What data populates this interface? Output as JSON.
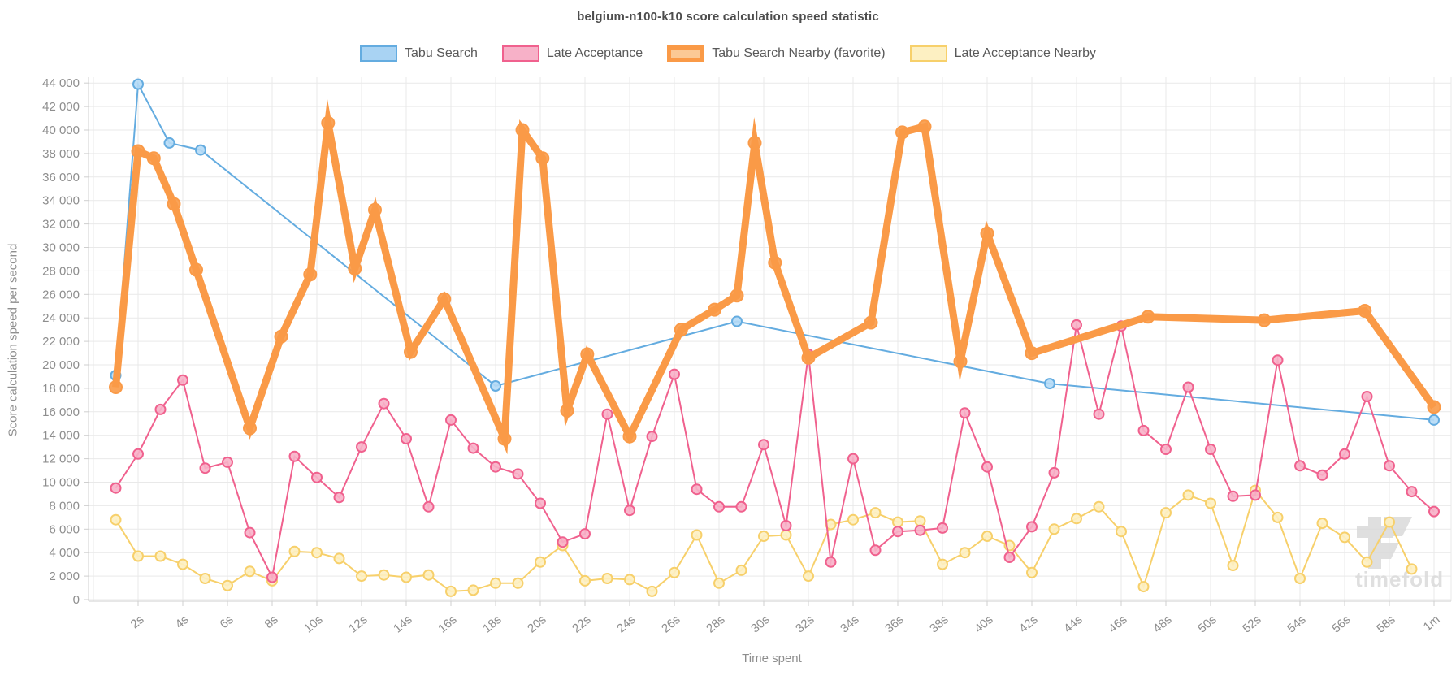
{
  "title": "belgium-n100-k10 score calculation speed statistic",
  "axes": {
    "x_title": "Time spent",
    "y_title": "Score calculation speed per second"
  },
  "watermark": {
    "text": "timefold",
    "color": "#dadada"
  },
  "legend_items": [
    {
      "label": "Tabu Search",
      "border": "#64ace0",
      "fill": "#a9d3f3",
      "thick": false
    },
    {
      "label": "Late Acceptance",
      "border": "#f0618e",
      "fill": "#f7b1c8",
      "thick": false
    },
    {
      "label": "Tabu Search Nearby (favorite)",
      "border": "#fa9a47",
      "fill": "#fbc995",
      "thick": true
    },
    {
      "label": "Late Acceptance Nearby",
      "border": "#f7d06b",
      "fill": "#fdf0c2",
      "thick": false
    }
  ],
  "chart_data": {
    "type": "line",
    "title": "belgium-n100-k10 score calculation speed statistic",
    "xlabel": "Time spent",
    "ylabel": "Score calculation speed per second",
    "x_unit": "seconds",
    "xlim": [
      0,
      60.8
    ],
    "ylim": [
      0,
      44000
    ],
    "y_tick_step": 2000,
    "grid": true,
    "legend_position": "top",
    "x_ticks": [
      {
        "t": 2,
        "label": "2s"
      },
      {
        "t": 4,
        "label": "4s"
      },
      {
        "t": 6,
        "label": "6s"
      },
      {
        "t": 8,
        "label": "8s"
      },
      {
        "t": 10,
        "label": "10s"
      },
      {
        "t": 12,
        "label": "12s"
      },
      {
        "t": 14,
        "label": "14s"
      },
      {
        "t": 16,
        "label": "16s"
      },
      {
        "t": 18,
        "label": "18s"
      },
      {
        "t": 20,
        "label": "20s"
      },
      {
        "t": 22,
        "label": "22s"
      },
      {
        "t": 24,
        "label": "24s"
      },
      {
        "t": 26,
        "label": "26s"
      },
      {
        "t": 28,
        "label": "28s"
      },
      {
        "t": 30,
        "label": "30s"
      },
      {
        "t": 32,
        "label": "32s"
      },
      {
        "t": 34,
        "label": "34s"
      },
      {
        "t": 36,
        "label": "36s"
      },
      {
        "t": 38,
        "label": "38s"
      },
      {
        "t": 40,
        "label": "40s"
      },
      {
        "t": 42,
        "label": "42s"
      },
      {
        "t": 44,
        "label": "44s"
      },
      {
        "t": 46,
        "label": "46s"
      },
      {
        "t": 48,
        "label": "48s"
      },
      {
        "t": 50,
        "label": "50s"
      },
      {
        "t": 52,
        "label": "52s"
      },
      {
        "t": 54,
        "label": "54s"
      },
      {
        "t": 56,
        "label": "56s"
      },
      {
        "t": 58,
        "label": "58s"
      },
      {
        "t": 60,
        "label": "1m"
      }
    ],
    "series": [
      {
        "name": "Tabu Search",
        "color": "#64ace0",
        "marker_fill": "#b5daf6",
        "line_width": 2,
        "marker_radius": 6,
        "points": [
          [
            1,
            19100
          ],
          [
            2,
            43900
          ],
          [
            3.4,
            38900
          ],
          [
            4.8,
            38300
          ],
          [
            18,
            18200
          ],
          [
            28.8,
            23700
          ],
          [
            42.8,
            18400
          ],
          [
            60,
            15300
          ]
        ]
      },
      {
        "name": "Late Acceptance Nearby",
        "color": "#f7d06b",
        "marker_fill": "#fdf0c2",
        "line_width": 2,
        "marker_radius": 6,
        "points": [
          [
            1,
            6800
          ],
          [
            2,
            3700
          ],
          [
            3,
            3700
          ],
          [
            4,
            3000
          ],
          [
            5,
            1800
          ],
          [
            6,
            1200
          ],
          [
            7,
            2400
          ],
          [
            8,
            1600
          ],
          [
            9,
            4100
          ],
          [
            10,
            4000
          ],
          [
            11,
            3500
          ],
          [
            12,
            2000
          ],
          [
            13,
            2100
          ],
          [
            14,
            1900
          ],
          [
            15,
            2100
          ],
          [
            16,
            700
          ],
          [
            17,
            800
          ],
          [
            18,
            1400
          ],
          [
            19,
            1400
          ],
          [
            20,
            3200
          ],
          [
            21,
            4600
          ],
          [
            22,
            1600
          ],
          [
            23,
            1800
          ],
          [
            24,
            1700
          ],
          [
            25,
            700
          ],
          [
            26,
            2300
          ],
          [
            27,
            5500
          ],
          [
            28,
            1400
          ],
          [
            29,
            2500
          ],
          [
            30,
            5400
          ],
          [
            31,
            5500
          ],
          [
            32,
            2000
          ],
          [
            33,
            6400
          ],
          [
            34,
            6800
          ],
          [
            35,
            7400
          ],
          [
            36,
            6600
          ],
          [
            37,
            6700
          ],
          [
            38,
            3000
          ],
          [
            39,
            4000
          ],
          [
            40,
            5400
          ],
          [
            41,
            4600
          ],
          [
            42,
            2300
          ],
          [
            43,
            6000
          ],
          [
            44,
            6900
          ],
          [
            45,
            7900
          ],
          [
            46,
            5800
          ],
          [
            47,
            1100
          ],
          [
            48,
            7400
          ],
          [
            49,
            8900
          ],
          [
            50,
            8200
          ],
          [
            51,
            2900
          ],
          [
            52,
            9300
          ],
          [
            53,
            7000
          ],
          [
            54,
            1800
          ],
          [
            55,
            6500
          ],
          [
            56,
            5300
          ],
          [
            57,
            3200
          ],
          [
            58,
            6600
          ],
          [
            59,
            2600
          ]
        ]
      },
      {
        "name": "Late Acceptance",
        "color": "#f0618e",
        "marker_fill": "#f7b1c8",
        "line_width": 2,
        "marker_radius": 6,
        "points": [
          [
            1,
            9500
          ],
          [
            2,
            12400
          ],
          [
            3,
            16200
          ],
          [
            4,
            18700
          ],
          [
            5,
            11200
          ],
          [
            6,
            11700
          ],
          [
            7,
            5700
          ],
          [
            8,
            1900
          ],
          [
            9,
            12200
          ],
          [
            10,
            10400
          ],
          [
            11,
            8700
          ],
          [
            12,
            13000
          ],
          [
            13,
            16700
          ],
          [
            14,
            13700
          ],
          [
            15,
            7900
          ],
          [
            16,
            15300
          ],
          [
            17,
            12900
          ],
          [
            18,
            11300
          ],
          [
            19,
            10700
          ],
          [
            20,
            8200
          ],
          [
            21,
            4900
          ],
          [
            22,
            5600
          ],
          [
            23,
            15800
          ],
          [
            24,
            7600
          ],
          [
            25,
            13900
          ],
          [
            26,
            19200
          ],
          [
            27,
            9400
          ],
          [
            28,
            7900
          ],
          [
            29,
            7900
          ],
          [
            30,
            13200
          ],
          [
            31,
            6300
          ],
          [
            32,
            20900
          ],
          [
            33,
            3200
          ],
          [
            34,
            12000
          ],
          [
            35,
            4200
          ],
          [
            36,
            5800
          ],
          [
            37,
            5900
          ],
          [
            38,
            6100
          ],
          [
            39,
            15900
          ],
          [
            40,
            11300
          ],
          [
            41,
            3600
          ],
          [
            42,
            6200
          ],
          [
            43,
            10800
          ],
          [
            44,
            23400
          ],
          [
            45,
            15800
          ],
          [
            46,
            23300
          ],
          [
            47,
            14400
          ],
          [
            48,
            12800
          ],
          [
            49,
            18100
          ],
          [
            50,
            12800
          ],
          [
            51,
            8800
          ],
          [
            52,
            8900
          ],
          [
            53,
            20400
          ],
          [
            54,
            11400
          ],
          [
            55,
            10600
          ],
          [
            56,
            12400
          ],
          [
            57,
            17300
          ],
          [
            58,
            11400
          ],
          [
            59,
            9200
          ],
          [
            60,
            7500
          ]
        ]
      },
      {
        "name": "Tabu Search Nearby (favorite)",
        "color": "#fa9a47",
        "marker_fill": "#fa9a47",
        "line_width": 9,
        "marker_radius": 7.5,
        "points": [
          [
            1,
            18100
          ],
          [
            2,
            38200
          ],
          [
            2.7,
            37600
          ],
          [
            3.6,
            33700
          ],
          [
            4.6,
            28100
          ],
          [
            7,
            14600
          ],
          [
            8.4,
            22400
          ],
          [
            9.7,
            27700
          ],
          [
            10.5,
            40600
          ],
          [
            11.7,
            28200
          ],
          [
            12.6,
            33200
          ],
          [
            14.2,
            21100
          ],
          [
            15.7,
            25600
          ],
          [
            18.4,
            13700
          ],
          [
            19.2,
            40000
          ],
          [
            20.1,
            37600
          ],
          [
            21.2,
            16100
          ],
          [
            22.1,
            20900
          ],
          [
            24,
            13900
          ],
          [
            26.3,
            23000
          ],
          [
            27.8,
            24700
          ],
          [
            28.8,
            25900
          ],
          [
            29.6,
            38900
          ],
          [
            30.5,
            28700
          ],
          [
            32,
            20600
          ],
          [
            34.8,
            23600
          ],
          [
            36.2,
            39800
          ],
          [
            37.2,
            40300
          ],
          [
            38.8,
            20300
          ],
          [
            40,
            31200
          ],
          [
            42,
            21000
          ],
          [
            47.2,
            24100
          ],
          [
            52.4,
            23800
          ],
          [
            56.9,
            24600
          ],
          [
            60,
            16400
          ]
        ]
      }
    ]
  }
}
